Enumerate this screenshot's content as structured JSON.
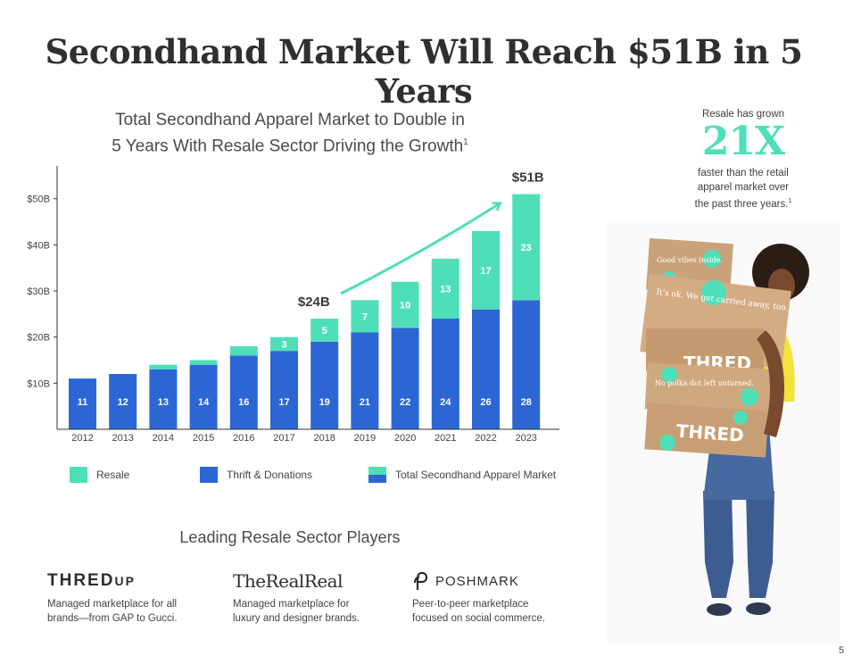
{
  "page": {
    "title": "Secondhand Market Will Reach $51B in 5 Years",
    "page_number": "5"
  },
  "chart_data": {
    "type": "bar",
    "title": "Total Secondhand Apparel Market to Double in",
    "title_line2": "5 Years With Resale Sector Driving the Growth",
    "title_sup": "1",
    "categories": [
      "2012",
      "2013",
      "2014",
      "2015",
      "2016",
      "2017",
      "2018",
      "2019",
      "2020",
      "2021",
      "2022",
      "2023"
    ],
    "series": [
      {
        "name": "Thrift & Donations",
        "values": [
          11,
          12,
          13,
          14,
          16,
          17,
          19,
          21,
          22,
          24,
          26,
          28
        ],
        "color": "#2c66d4"
      },
      {
        "name": "Resale",
        "values": [
          0,
          0,
          1,
          1,
          2,
          3,
          5,
          7,
          10,
          13,
          17,
          23
        ],
        "color": "#4fdfb8"
      }
    ],
    "resale_labels": [
      "",
      "",
      "",
      "",
      "",
      "3",
      "5",
      "7",
      "10",
      "13",
      "17",
      "23"
    ],
    "y_ticks": [
      "$10B",
      "$20B",
      "$30B",
      "$40B",
      "$50B"
    ],
    "y_tick_values": [
      10,
      20,
      30,
      40,
      50
    ],
    "ylim": [
      0,
      57
    ],
    "annotations": [
      {
        "text": "$24B",
        "category": "2018"
      },
      {
        "text": "$51B",
        "category": "2023"
      }
    ],
    "legend": [
      {
        "label": "Resale",
        "color": "#4fdfb8"
      },
      {
        "label": "Thrift & Donations",
        "color": "#2c66d4"
      },
      {
        "label": "Total Secondhand Apparel Market",
        "color_top": "#4fdfb8",
        "color_bottom": "#2c66d4"
      }
    ]
  },
  "players": {
    "title": "Leading Resale Sector Players",
    "items": [
      {
        "logo": "THREDUP",
        "logo_sup": "UP",
        "logo_main": "THRED",
        "desc1": "Managed marketplace for all",
        "desc2": "brands—from GAP to Gucci."
      },
      {
        "logo": "TheRealReal",
        "desc1": "Managed marketplace for",
        "desc2": "luxury and designer brands."
      },
      {
        "logo": "POSHMARK",
        "desc1": "Peer-to-peer marketplace",
        "desc2": "focused on social commerce."
      }
    ]
  },
  "side": {
    "intro": "Resale has grown",
    "stat": "21X",
    "desc1": "faster than the retail",
    "desc2": "apparel market over",
    "desc3": "the past three years.",
    "desc_sup": "1"
  },
  "photo": {
    "box_text_1": "Good vibes inside.",
    "box_text_2": "It's ok. We get carried away, too.",
    "box_text_3": "THRED",
    "box_text_4": "No polka dot left unturned.",
    "box_text_5": "THRED"
  }
}
